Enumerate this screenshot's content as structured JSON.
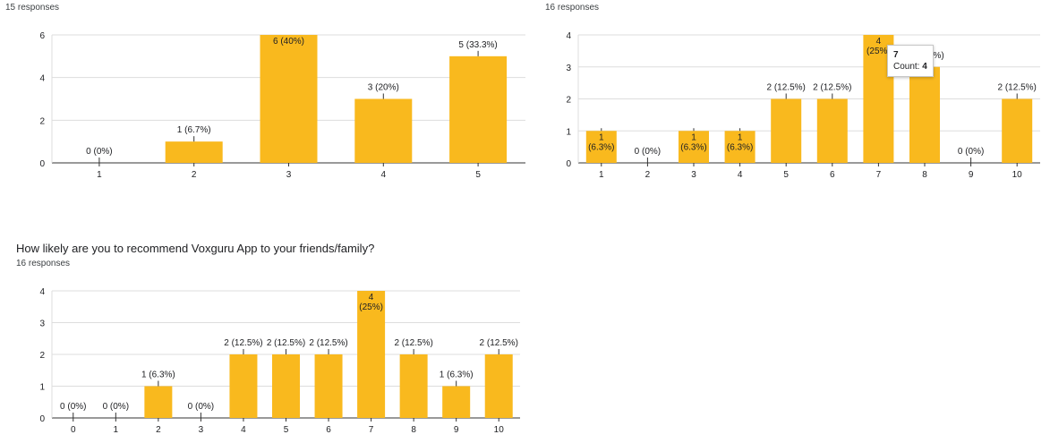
{
  "colors": {
    "bar": "#f9b91e",
    "bar_border": "#e0a000",
    "axis": "#333333",
    "grid": "#dddddd",
    "text": "#202124"
  },
  "panels": [
    {
      "id": "chart1",
      "question": "",
      "responses": "15 responses"
    },
    {
      "id": "chart2",
      "question": "",
      "responses": "16 responses"
    },
    {
      "id": "chart3",
      "question": "How likely are you to recommend Voxguru App to your friends/family?",
      "responses": "16 responses"
    }
  ],
  "tooltip": {
    "title": "7",
    "count_label": "Count:",
    "count_value": "4"
  },
  "chart_data": [
    {
      "type": "bar",
      "categories": [
        "1",
        "2",
        "3",
        "4",
        "5"
      ],
      "values": [
        0,
        1,
        6,
        3,
        5
      ],
      "labels": [
        [
          "0 (0%)"
        ],
        [
          "1 (6.7%)"
        ],
        [
          "6 (40%)"
        ],
        [
          "3 (20%)"
        ],
        [
          "5 (33.3%)"
        ]
      ],
      "yticks": [
        0,
        2,
        4,
        6
      ],
      "ylim": [
        0,
        6
      ],
      "title": "",
      "xlabel": "",
      "ylabel": "",
      "grid": true
    },
    {
      "type": "bar",
      "categories": [
        "1",
        "2",
        "3",
        "4",
        "5",
        "6",
        "7",
        "8",
        "9",
        "10"
      ],
      "values": [
        1,
        0,
        1,
        1,
        2,
        2,
        4,
        3,
        0,
        2
      ],
      "labels": [
        [
          "1",
          "(6.3%)"
        ],
        [
          "0 (0%)"
        ],
        [
          "1",
          "(6.3%)"
        ],
        [
          "1",
          "(6.3%)"
        ],
        [
          "2 (12.5%)"
        ],
        [
          "2 (12.5%)"
        ],
        [
          "4",
          "(25%)"
        ],
        [
          "3 (18.8%)"
        ],
        [
          "0 (0%)"
        ],
        [
          "2 (12.5%)"
        ]
      ],
      "yticks": [
        0,
        1,
        2,
        3,
        4
      ],
      "ylim": [
        0,
        4
      ],
      "title": "",
      "xlabel": "",
      "ylabel": "",
      "grid": true
    },
    {
      "type": "bar",
      "categories": [
        "0",
        "1",
        "2",
        "3",
        "4",
        "5",
        "6",
        "7",
        "8",
        "9",
        "10"
      ],
      "values": [
        0,
        0,
        1,
        0,
        2,
        2,
        2,
        4,
        2,
        1,
        2
      ],
      "labels": [
        [
          "0 (0%)"
        ],
        [
          "0 (0%)"
        ],
        [
          "1 (6.3%)"
        ],
        [
          "0 (0%)"
        ],
        [
          "2 (12.5%)"
        ],
        [
          "2 (12.5%)"
        ],
        [
          "2 (12.5%)"
        ],
        [
          "4",
          "(25%)"
        ],
        [
          "2 (12.5%)"
        ],
        [
          "1 (6.3%)"
        ],
        [
          "2 (12.5%)"
        ]
      ],
      "yticks": [
        0,
        1,
        2,
        3,
        4
      ],
      "ylim": [
        0,
        4
      ],
      "title": "",
      "xlabel": "",
      "ylabel": "",
      "grid": true
    }
  ]
}
